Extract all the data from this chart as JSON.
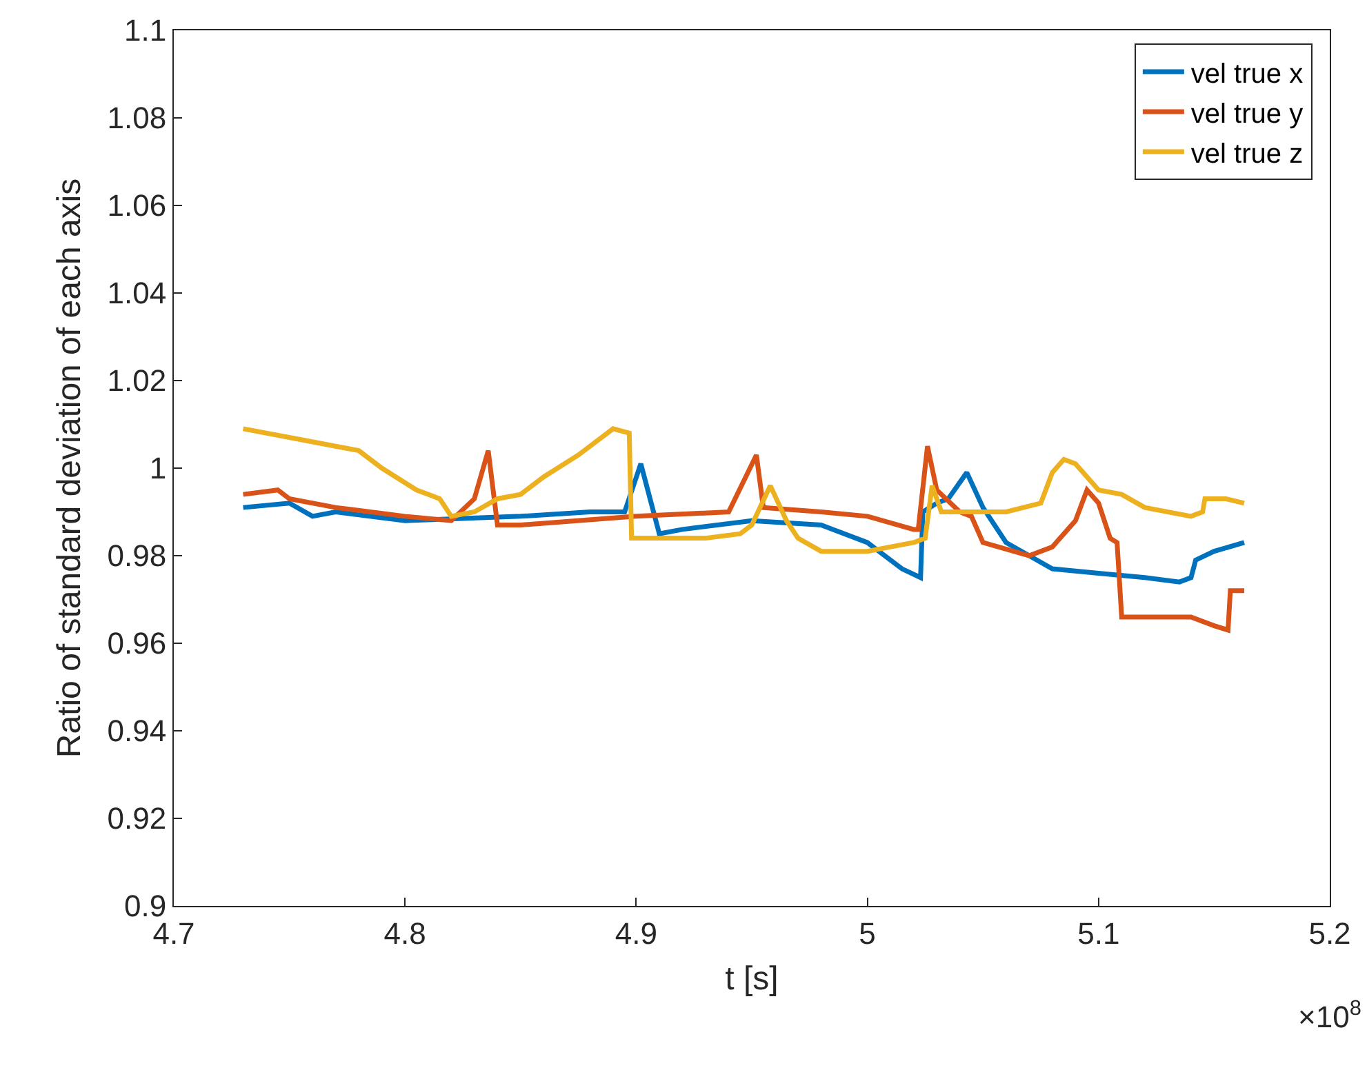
{
  "chart_data": {
    "type": "line",
    "xlabel": "t [s]",
    "ylabel": "Ratio of standard deviation of each axis",
    "annotations": [
      "×10$^{8}$"
    ],
    "xlim": [
      4.7,
      5.2
    ],
    "xticks": [
      4.7,
      4.8,
      4.9,
      {
        "value": 5,
        "label": "5"
      },
      5.1,
      5.2
    ],
    "ylim": [
      0.9,
      1.1
    ],
    "yticks": [
      0.9,
      0.92,
      0.94,
      0.96,
      0.98,
      {
        "value": 1,
        "label": "1"
      },
      1.02,
      1.04,
      1.06,
      1.08,
      1.1
    ],
    "grid": false,
    "legend": "top right",
    "line_style": "solid",
    "marker": "none",
    "series": [
      {
        "name": "vel true x",
        "color": "#0072bd",
        "x": [
          4.73,
          4.75,
          4.76,
          4.77,
          4.8,
          4.85,
          4.88,
          4.895,
          4.902,
          4.905,
          4.91,
          4.92,
          4.95,
          4.98,
          5.0,
          5.015,
          5.023,
          5.024,
          5.03,
          5.035,
          5.043,
          5.05,
          5.06,
          5.07,
          5.08,
          5.1,
          5.12,
          5.135,
          5.14,
          5.142,
          5.15,
          5.163
        ],
        "values": [
          0.991,
          0.992,
          0.989,
          0.99,
          0.988,
          0.989,
          0.99,
          0.99,
          1.001,
          0.995,
          0.985,
          0.986,
          0.988,
          0.987,
          0.983,
          0.977,
          0.975,
          0.99,
          0.992,
          0.993,
          0.999,
          0.991,
          0.983,
          0.98,
          0.977,
          0.976,
          0.975,
          0.974,
          0.975,
          0.979,
          0.981,
          0.983
        ]
      },
      {
        "name": "vel true y",
        "color": "#d95319",
        "x": [
          4.73,
          4.745,
          4.75,
          4.77,
          4.8,
          4.82,
          4.83,
          4.836,
          4.84,
          4.85,
          4.9,
          4.94,
          4.952,
          4.955,
          4.98,
          5.0,
          5.02,
          5.022,
          5.026,
          5.03,
          5.04,
          5.045,
          5.05,
          5.07,
          5.08,
          5.09,
          5.095,
          5.1,
          5.105,
          5.108,
          5.11,
          5.12,
          5.14,
          5.15,
          5.156,
          5.157,
          5.163
        ],
        "values": [
          0.994,
          0.995,
          0.993,
          0.991,
          0.989,
          0.988,
          0.993,
          1.004,
          0.987,
          0.987,
          0.989,
          0.99,
          1.003,
          0.991,
          0.99,
          0.989,
          0.986,
          0.986,
          1.005,
          0.995,
          0.99,
          0.989,
          0.983,
          0.98,
          0.982,
          0.988,
          0.995,
          0.992,
          0.984,
          0.983,
          0.966,
          0.966,
          0.966,
          0.964,
          0.963,
          0.972,
          0.972
        ]
      },
      {
        "name": "vel true z",
        "color": "#edb120",
        "x": [
          4.73,
          4.75,
          4.77,
          4.78,
          4.79,
          4.805,
          4.81,
          4.815,
          4.82,
          4.83,
          4.84,
          4.85,
          4.86,
          4.875,
          4.89,
          4.897,
          4.898,
          4.93,
          4.945,
          4.95,
          4.958,
          4.965,
          4.97,
          4.98,
          5.0,
          5.02,
          5.025,
          5.028,
          5.032,
          5.04,
          5.06,
          5.075,
          5.08,
          5.085,
          5.09,
          5.1,
          5.11,
          5.12,
          5.14,
          5.145,
          5.146,
          5.155,
          5.163
        ],
        "values": [
          1.009,
          1.007,
          1.005,
          1.004,
          1.0,
          0.995,
          0.994,
          0.993,
          0.989,
          0.99,
          0.993,
          0.994,
          0.998,
          1.003,
          1.009,
          1.008,
          0.984,
          0.984,
          0.985,
          0.987,
          0.996,
          0.988,
          0.984,
          0.981,
          0.981,
          0.983,
          0.984,
          0.996,
          0.99,
          0.99,
          0.99,
          0.992,
          0.999,
          1.002,
          1.001,
          0.995,
          0.994,
          0.991,
          0.989,
          0.99,
          0.993,
          0.993,
          0.992
        ]
      }
    ]
  }
}
